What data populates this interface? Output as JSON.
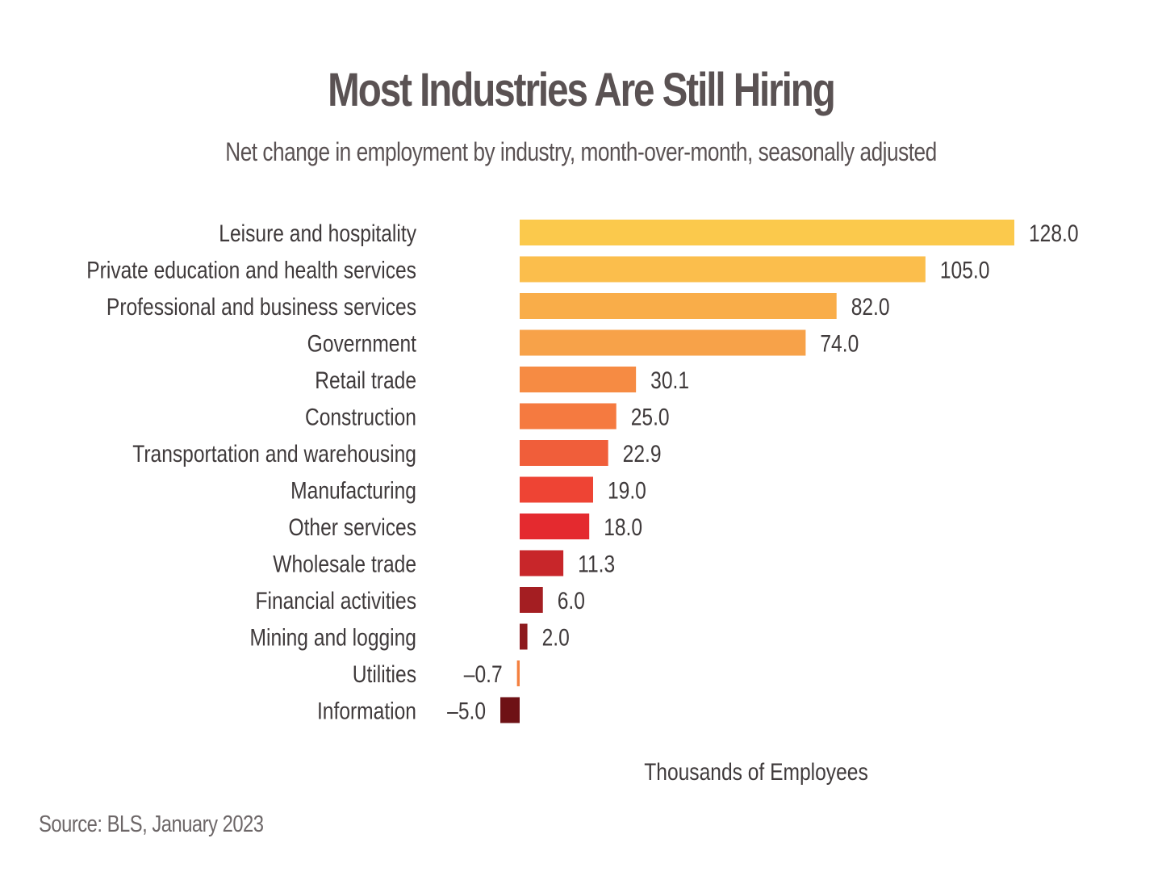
{
  "chart_data": {
    "type": "bar",
    "orientation": "horizontal",
    "title": "Most Industries Are Still Hiring",
    "subtitle": "Net change in employment by industry, month-over-month, seasonally adjusted",
    "xlabel": "Thousands of Employees",
    "ylabel": "",
    "xlim": [
      -5,
      128
    ],
    "grid": false,
    "legend": "none",
    "categories": [
      "Leisure and hospitality",
      "Private education and health services",
      "Professional and business services",
      "Government",
      "Retail trade",
      "Construction",
      "Transportation and warehousing",
      "Manufacturing",
      "Other services",
      "Wholesale trade",
      "Financial activities",
      "Mining and logging",
      "Utilities",
      "Information"
    ],
    "values": [
      128.0,
      105.0,
      82.0,
      74.0,
      30.1,
      25.0,
      22.9,
      19.0,
      18.0,
      11.3,
      6.0,
      2.0,
      -0.7,
      -5.0
    ],
    "value_labels": [
      "128.0",
      "105.0",
      "82.0",
      "74.0",
      "30.1",
      "25.0",
      "22.9",
      "19.0",
      "18.0",
      "11.3",
      "6.0",
      "2.0",
      "–0.7",
      "–5.0"
    ],
    "colors": [
      "#fbc94c",
      "#fbbe4c",
      "#f9ad49",
      "#f7a249",
      "#f68b43",
      "#f57a40",
      "#f05e3a",
      "#ee4434",
      "#e42a2f",
      "#c8262a",
      "#a41e22",
      "#8e1a1e",
      "#f4803f",
      "#6e1115"
    ]
  },
  "source": "Source: BLS, January 2023"
}
